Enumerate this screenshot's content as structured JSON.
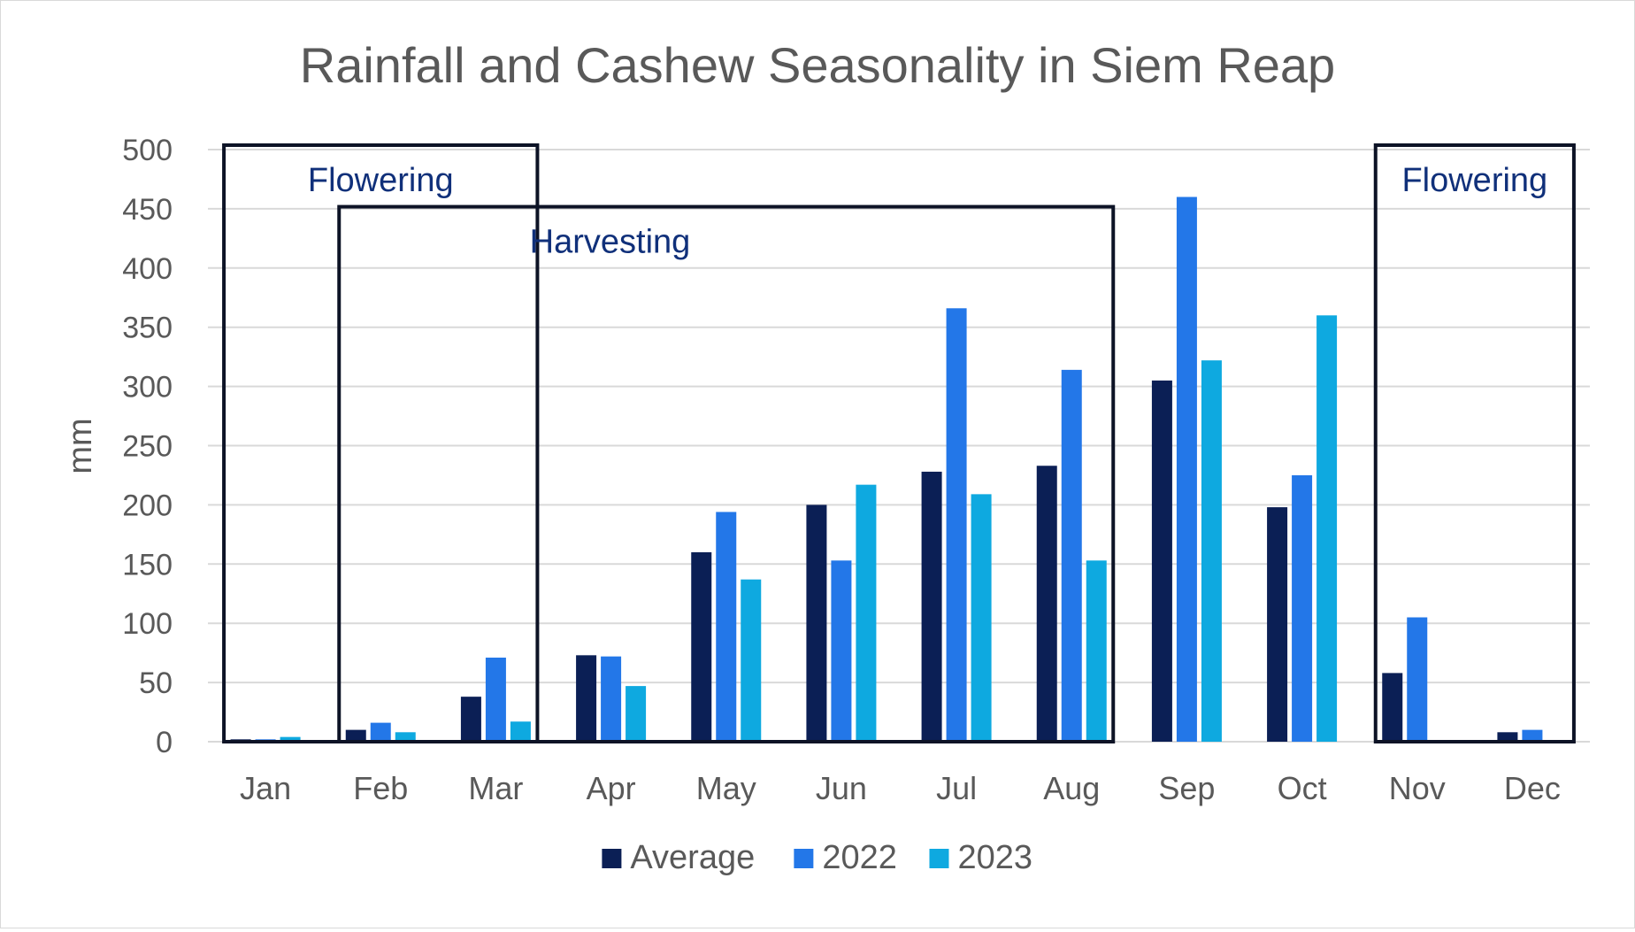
{
  "chart_data": {
    "type": "bar",
    "title": "Rainfall and Cashew Seasonality in Siem Reap",
    "ylabel": "mm",
    "xlabel": "",
    "ylim": [
      0,
      500
    ],
    "yticks": [
      0,
      50,
      100,
      150,
      200,
      250,
      300,
      350,
      400,
      450,
      500
    ],
    "grid": true,
    "legend_position": "bottom",
    "categories": [
      "Jan",
      "Feb",
      "Mar",
      "Apr",
      "May",
      "Jun",
      "Jul",
      "Aug",
      "Sep",
      "Oct",
      "Nov",
      "Dec"
    ],
    "series": [
      {
        "name": "Average",
        "color": "#0b1f55",
        "values": [
          2,
          10,
          38,
          73,
          160,
          200,
          228,
          233,
          305,
          198,
          58,
          8
        ]
      },
      {
        "name": "2022",
        "color": "#2377e8",
        "values": [
          2,
          16,
          71,
          72,
          194,
          153,
          366,
          314,
          460,
          225,
          105,
          10
        ]
      },
      {
        "name": "2023",
        "color": "#0ea9e0",
        "values": [
          4,
          8,
          17,
          47,
          137,
          217,
          209,
          153,
          322,
          360,
          0,
          0
        ]
      }
    ],
    "annotations": [
      {
        "label": "Flowering",
        "start": "Jan",
        "end": "Mar",
        "top_value": 500
      },
      {
        "label": "Harvesting",
        "start": "Feb",
        "end": "Aug",
        "top_value": 448
      },
      {
        "label": "Flowering",
        "start": "Nov",
        "end": "Dec",
        "top_value": 500
      }
    ]
  }
}
